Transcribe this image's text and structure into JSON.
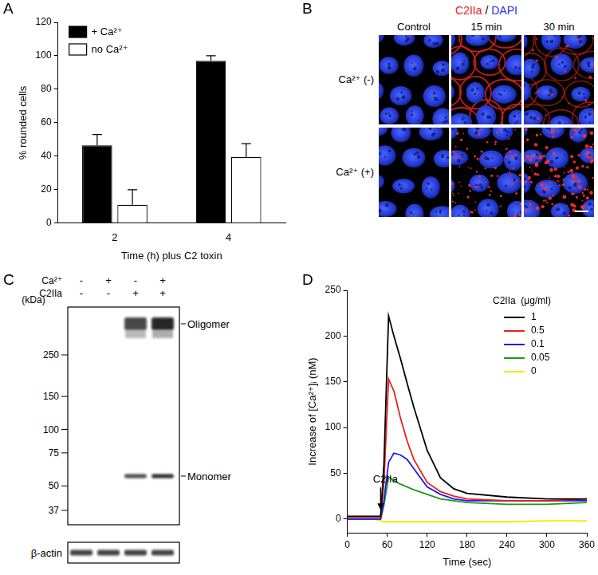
{
  "chart_data": [
    {
      "panel": "A",
      "type": "bar",
      "categories": [
        "2",
        "4"
      ],
      "x_label": "Time (h) plus C2 toxin",
      "y_label": "% rounded cells",
      "series": [
        {
          "name": "+ Ca²⁺",
          "color": "#000000",
          "values": [
            46.5,
            97
          ],
          "errors": [
            6.5,
            3
          ]
        },
        {
          "name": "no Ca²⁺",
          "color": "#ffffff",
          "values": [
            11,
            39.5
          ],
          "errors": [
            9,
            8
          ]
        }
      ],
      "ylim": [
        0,
        120
      ],
      "yticks": [
        0,
        20,
        40,
        60,
        80,
        100,
        120
      ],
      "grid": false,
      "legend": "upper left"
    },
    {
      "panel": "D",
      "type": "line",
      "x": [
        0,
        20,
        40,
        50,
        55,
        62,
        70,
        80,
        90,
        100,
        120,
        140,
        160,
        180,
        240,
        300,
        360
      ],
      "x_label": "Time (sec)",
      "y_label": "Increase of [Ca²⁺]ᵢ (nM)",
      "legend_title": "C2IIa  (μg/ml)",
      "series": [
        {
          "name": "1",
          "color": "#000000",
          "values": [
            3,
            3,
            3,
            3,
            60,
            222,
            200,
            175,
            148,
            122,
            75,
            45,
            33,
            28,
            24,
            22,
            22
          ]
        },
        {
          "name": "0.5",
          "color": "#ee1c1c",
          "values": [
            2,
            2,
            2,
            2,
            40,
            153,
            140,
            110,
            85,
            65,
            40,
            30,
            25,
            22,
            20,
            20,
            22
          ]
        },
        {
          "name": "0.1",
          "color": "#1a1aee",
          "values": [
            0,
            0,
            0,
            0,
            20,
            62,
            72,
            70,
            65,
            55,
            35,
            27,
            22,
            20,
            20,
            20,
            20
          ]
        },
        {
          "name": "0.05",
          "color": "#1a9a1a",
          "values": [
            0,
            0,
            0,
            0,
            15,
            46,
            42,
            38,
            35,
            32,
            27,
            22,
            20,
            18,
            16,
            16,
            18
          ]
        },
        {
          "name": "0",
          "color": "#f5e800",
          "values": [
            0,
            0,
            0,
            -2,
            -3,
            -3,
            -3,
            -3,
            -3,
            -3,
            -3,
            -3,
            -3,
            -3,
            -3,
            -2,
            -2
          ]
        }
      ],
      "xlim": [
        0,
        360
      ],
      "xticks": [
        0,
        60,
        120,
        180,
        240,
        300,
        360
      ],
      "ylim": [
        -15,
        250
      ],
      "yticks": [
        0,
        50,
        100,
        150,
        200,
        250
      ],
      "grid": false,
      "legend": "upper right",
      "annotations": [
        {
          "text": "C2IIa",
          "x": 50,
          "y": 10
        }
      ]
    }
  ],
  "panel_B": {
    "panel": "B",
    "title": [
      {
        "text": "C2IIa",
        "color": "#e8202a"
      },
      {
        "text": " / ",
        "color": "#000000"
      },
      {
        "text": "DAPI",
        "color": "#2233dd"
      }
    ],
    "columns": [
      "Control",
      "15 min",
      "30 min"
    ],
    "rows": [
      "Ca²⁺ (-)",
      "Ca²⁺ (+)"
    ]
  },
  "panel_C": {
    "panel": "C",
    "conditions": [
      {
        "label": "Ca²⁺",
        "signs": [
          "-",
          "+",
          "-",
          "+"
        ]
      },
      {
        "label": "C2IIa",
        "signs": [
          "-",
          "-",
          "+",
          "+"
        ]
      }
    ],
    "unit_label": "(kDa)",
    "markers": [
      250,
      150,
      100,
      75,
      50,
      37
    ],
    "bands": [
      {
        "label": "Oligomer",
        "lanes": [
          false,
          false,
          true,
          true
        ]
      },
      {
        "label": "Monomer",
        "lanes": [
          false,
          false,
          true,
          true
        ]
      }
    ],
    "loading": {
      "label": "β-actin",
      "lanes": [
        true,
        true,
        true,
        true
      ]
    }
  }
}
